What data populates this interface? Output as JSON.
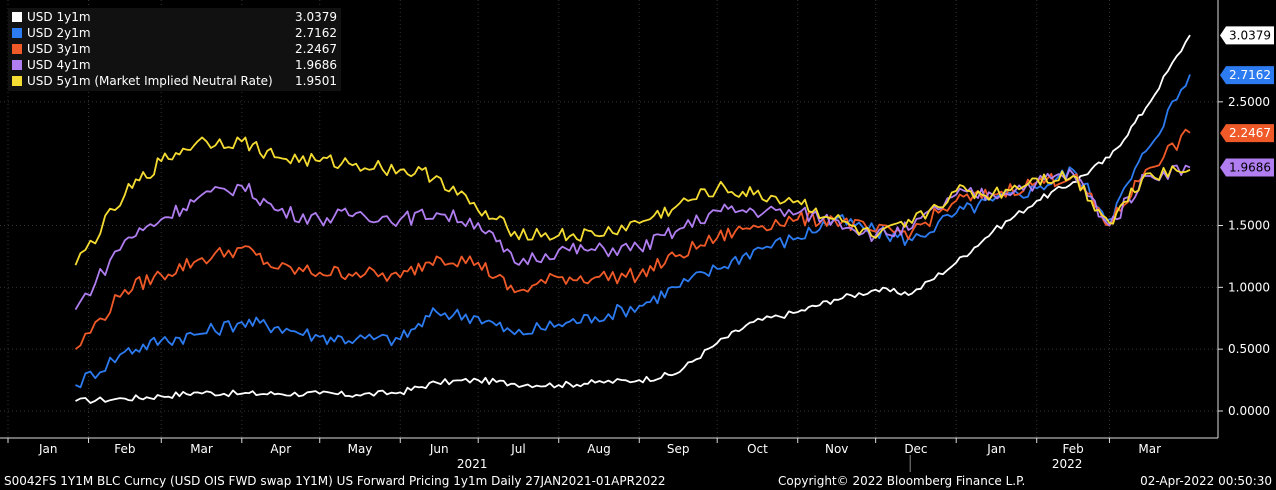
{
  "chart_data": {
    "type": "line",
    "x_range": [
      "2021-01-27",
      "2022-04-01"
    ],
    "ylim": [
      -0.1,
      3.3
    ],
    "y_ticks": [
      "0.0000",
      "0.5000",
      "1.0000",
      "1.5000",
      "2.5000"
    ],
    "months": [
      {
        "label": "Jan",
        "date": "2021-01-01"
      },
      {
        "label": "Feb",
        "date": "2021-02-01"
      },
      {
        "label": "Mar",
        "date": "2021-03-01"
      },
      {
        "label": "Apr",
        "date": "2021-04-01"
      },
      {
        "label": "May",
        "date": "2021-05-01"
      },
      {
        "label": "Jun",
        "date": "2021-06-01"
      },
      {
        "label": "Jul",
        "date": "2021-07-01"
      },
      {
        "label": "Aug",
        "date": "2021-08-01"
      },
      {
        "label": "Sep",
        "date": "2021-09-01"
      },
      {
        "label": "Oct",
        "date": "2021-10-01"
      },
      {
        "label": "Nov",
        "date": "2021-11-01"
      },
      {
        "label": "Dec",
        "date": "2021-12-01"
      },
      {
        "label": "Jan",
        "date": "2022-01-01"
      },
      {
        "label": "Feb",
        "date": "2022-02-01"
      },
      {
        "label": "Mar",
        "date": "2022-03-01"
      }
    ],
    "years": [
      {
        "label": "2021",
        "date": "2021-07-01"
      },
      {
        "label": "2022",
        "date": "2022-02-15"
      }
    ],
    "series": [
      {
        "name": "USD 1y1m",
        "color": "#ffffff",
        "last": "3.0379",
        "points": [
          [
            "2021-01-27",
            0.08
          ],
          [
            "2021-02-15",
            0.1
          ],
          [
            "2021-03-01",
            0.12
          ],
          [
            "2021-03-15",
            0.15
          ],
          [
            "2021-04-01",
            0.14
          ],
          [
            "2021-04-15",
            0.14
          ],
          [
            "2021-05-01",
            0.14
          ],
          [
            "2021-05-15",
            0.13
          ],
          [
            "2021-06-01",
            0.15
          ],
          [
            "2021-06-15",
            0.23
          ],
          [
            "2021-07-01",
            0.25
          ],
          [
            "2021-07-15",
            0.22
          ],
          [
            "2021-08-01",
            0.21
          ],
          [
            "2021-08-15",
            0.23
          ],
          [
            "2021-09-01",
            0.25
          ],
          [
            "2021-09-15",
            0.3
          ],
          [
            "2021-10-01",
            0.55
          ],
          [
            "2021-10-15",
            0.72
          ],
          [
            "2021-11-01",
            0.8
          ],
          [
            "2021-11-15",
            0.9
          ],
          [
            "2021-12-01",
            0.98
          ],
          [
            "2021-12-15",
            0.95
          ],
          [
            "2022-01-01",
            1.2
          ],
          [
            "2022-01-15",
            1.45
          ],
          [
            "2022-02-01",
            1.7
          ],
          [
            "2022-02-15",
            1.85
          ],
          [
            "2022-03-01",
            2.05
          ],
          [
            "2022-03-15",
            2.45
          ],
          [
            "2022-04-01",
            3.04
          ]
        ]
      },
      {
        "name": "USD 2y1m",
        "color": "#2d7bf0",
        "last": "2.7162",
        "points": [
          [
            "2021-01-27",
            0.21
          ],
          [
            "2021-02-15",
            0.48
          ],
          [
            "2021-03-01",
            0.57
          ],
          [
            "2021-03-15",
            0.62
          ],
          [
            "2021-04-01",
            0.72
          ],
          [
            "2021-04-15",
            0.68
          ],
          [
            "2021-05-01",
            0.6
          ],
          [
            "2021-05-15",
            0.58
          ],
          [
            "2021-06-01",
            0.58
          ],
          [
            "2021-06-15",
            0.8
          ],
          [
            "2021-07-01",
            0.76
          ],
          [
            "2021-07-15",
            0.62
          ],
          [
            "2021-08-01",
            0.7
          ],
          [
            "2021-08-15",
            0.76
          ],
          [
            "2021-09-01",
            0.85
          ],
          [
            "2021-09-15",
            1.0
          ],
          [
            "2021-10-01",
            1.15
          ],
          [
            "2021-10-15",
            1.3
          ],
          [
            "2021-11-01",
            1.4
          ],
          [
            "2021-11-15",
            1.55
          ],
          [
            "2021-12-01",
            1.45
          ],
          [
            "2021-12-15",
            1.38
          ],
          [
            "2022-01-01",
            1.6
          ],
          [
            "2022-01-15",
            1.7
          ],
          [
            "2022-02-01",
            1.8
          ],
          [
            "2022-02-15",
            1.95
          ],
          [
            "2022-03-01",
            1.55
          ],
          [
            "2022-03-15",
            2.1
          ],
          [
            "2022-04-01",
            2.72
          ]
        ]
      },
      {
        "name": "USD 3y1m",
        "color": "#f05a28",
        "last": "2.2467",
        "points": [
          [
            "2021-01-27",
            0.5
          ],
          [
            "2021-02-15",
            0.98
          ],
          [
            "2021-03-01",
            1.1
          ],
          [
            "2021-03-15",
            1.22
          ],
          [
            "2021-04-01",
            1.32
          ],
          [
            "2021-04-15",
            1.15
          ],
          [
            "2021-05-01",
            1.12
          ],
          [
            "2021-05-15",
            1.12
          ],
          [
            "2021-06-01",
            1.08
          ],
          [
            "2021-06-15",
            1.25
          ],
          [
            "2021-07-01",
            1.2
          ],
          [
            "2021-07-15",
            0.96
          ],
          [
            "2021-08-01",
            1.08
          ],
          [
            "2021-08-15",
            1.08
          ],
          [
            "2021-09-01",
            1.1
          ],
          [
            "2021-09-15",
            1.25
          ],
          [
            "2021-10-01",
            1.4
          ],
          [
            "2021-10-15",
            1.5
          ],
          [
            "2021-11-01",
            1.55
          ],
          [
            "2021-11-15",
            1.55
          ],
          [
            "2021-12-01",
            1.45
          ],
          [
            "2021-12-15",
            1.45
          ],
          [
            "2022-01-01",
            1.7
          ],
          [
            "2022-01-15",
            1.75
          ],
          [
            "2022-02-01",
            1.85
          ],
          [
            "2022-02-15",
            1.9
          ],
          [
            "2022-03-01",
            1.5
          ],
          [
            "2022-03-15",
            1.95
          ],
          [
            "2022-04-01",
            2.25
          ]
        ]
      },
      {
        "name": "USD 4y1m",
        "color": "#b07ef0",
        "last": "1.9686",
        "points": [
          [
            "2021-01-27",
            0.82
          ],
          [
            "2021-02-15",
            1.38
          ],
          [
            "2021-03-01",
            1.55
          ],
          [
            "2021-03-15",
            1.72
          ],
          [
            "2021-04-01",
            1.82
          ],
          [
            "2021-04-15",
            1.62
          ],
          [
            "2021-05-01",
            1.55
          ],
          [
            "2021-05-15",
            1.6
          ],
          [
            "2021-06-01",
            1.55
          ],
          [
            "2021-06-15",
            1.6
          ],
          [
            "2021-07-01",
            1.52
          ],
          [
            "2021-07-15",
            1.2
          ],
          [
            "2021-08-01",
            1.3
          ],
          [
            "2021-08-15",
            1.3
          ],
          [
            "2021-09-01",
            1.32
          ],
          [
            "2021-09-15",
            1.45
          ],
          [
            "2021-10-01",
            1.62
          ],
          [
            "2021-10-15",
            1.62
          ],
          [
            "2021-11-01",
            1.6
          ],
          [
            "2021-11-15",
            1.55
          ],
          [
            "2021-12-01",
            1.42
          ],
          [
            "2021-12-15",
            1.48
          ],
          [
            "2022-01-01",
            1.75
          ],
          [
            "2022-01-15",
            1.75
          ],
          [
            "2022-02-01",
            1.85
          ],
          [
            "2022-02-15",
            1.92
          ],
          [
            "2022-03-01",
            1.5
          ],
          [
            "2022-03-15",
            1.9
          ],
          [
            "2022-04-01",
            1.97
          ]
        ]
      },
      {
        "name": "USD 5y1m (Market Implied Neutral Rate)",
        "color": "#f5dc32",
        "last": "1.9501",
        "points": [
          [
            "2021-01-27",
            1.18
          ],
          [
            "2021-02-15",
            1.75
          ],
          [
            "2021-03-01",
            2.02
          ],
          [
            "2021-03-15",
            2.18
          ],
          [
            "2021-04-01",
            2.18
          ],
          [
            "2021-04-15",
            2.05
          ],
          [
            "2021-05-01",
            2.02
          ],
          [
            "2021-05-15",
            2.0
          ],
          [
            "2021-06-01",
            1.95
          ],
          [
            "2021-06-15",
            1.9
          ],
          [
            "2021-07-01",
            1.62
          ],
          [
            "2021-07-15",
            1.45
          ],
          [
            "2021-08-01",
            1.42
          ],
          [
            "2021-08-15",
            1.42
          ],
          [
            "2021-09-01",
            1.52
          ],
          [
            "2021-09-15",
            1.65
          ],
          [
            "2021-10-01",
            1.8
          ],
          [
            "2021-10-15",
            1.75
          ],
          [
            "2021-11-01",
            1.7
          ],
          [
            "2021-11-15",
            1.55
          ],
          [
            "2021-12-01",
            1.4
          ],
          [
            "2021-12-15",
            1.52
          ],
          [
            "2022-01-01",
            1.78
          ],
          [
            "2022-01-15",
            1.75
          ],
          [
            "2022-02-01",
            1.88
          ],
          [
            "2022-02-15",
            1.9
          ],
          [
            "2022-03-01",
            1.52
          ],
          [
            "2022-03-15",
            1.92
          ],
          [
            "2022-04-01",
            1.95
          ]
        ]
      }
    ]
  },
  "footer": {
    "left": "S0042FS 1Y1M BLC Curncy (USD OIS FWD swap 1Y1M) US Forward Pricing 1y1m  Daily 27JAN2021-01APR2022",
    "copyright": "Copyright© 2022 Bloomberg Finance L.P.",
    "timestamp": "02-Apr-2022 00:50:30"
  }
}
